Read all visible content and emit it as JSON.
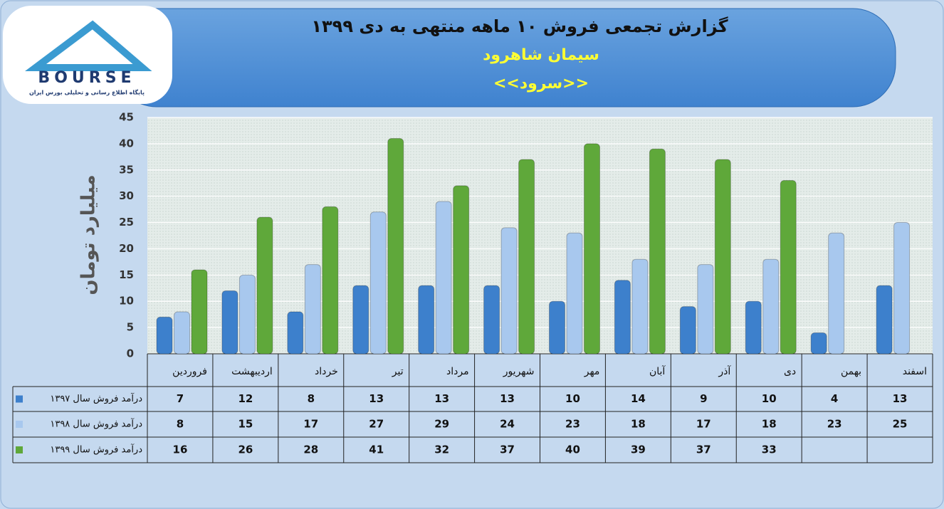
{
  "logo": {
    "text": "BOURSE",
    "caption": "پایگاه اطلاع رسانی و تحلیلی بورس ایران"
  },
  "chart_data": {
    "type": "bar",
    "title": "گزارش تجمعی فروش ۱۰ ماهه منتهی به دی ۱۳۹۹",
    "subtitle": "سیمان شاهرود",
    "symbol": "<<سرود>>",
    "y_label": "میلیارد تومان",
    "categories": [
      "فروردین",
      "اردیبهشت",
      "خرداد",
      "تیر",
      "مرداد",
      "شهریور",
      "مهر",
      "آبان",
      "آذر",
      "دی",
      "بهمن",
      "اسفند"
    ],
    "series": [
      {
        "name": "درآمد فروش سال ۱۳۹۷",
        "color": "#3d80cc",
        "values": [
          7,
          12,
          8,
          13,
          13,
          13,
          10,
          14,
          9,
          10,
          4,
          13
        ]
      },
      {
        "name": "درآمد فروش سال ۱۳۹۸",
        "color": "#a8c8ee",
        "values": [
          8,
          15,
          17,
          27,
          29,
          24,
          23,
          18,
          17,
          18,
          23,
          25
        ]
      },
      {
        "name": "درآمد فروش سال ۱۳۹۹",
        "color": "#5fa83a",
        "values": [
          16,
          26,
          28,
          41,
          32,
          37,
          40,
          39,
          37,
          33,
          null,
          null
        ]
      }
    ],
    "ylim": [
      0,
      45
    ],
    "yticks": [
      0,
      5,
      10,
      15,
      20,
      25,
      30,
      35,
      40,
      45
    ],
    "grid": true
  }
}
